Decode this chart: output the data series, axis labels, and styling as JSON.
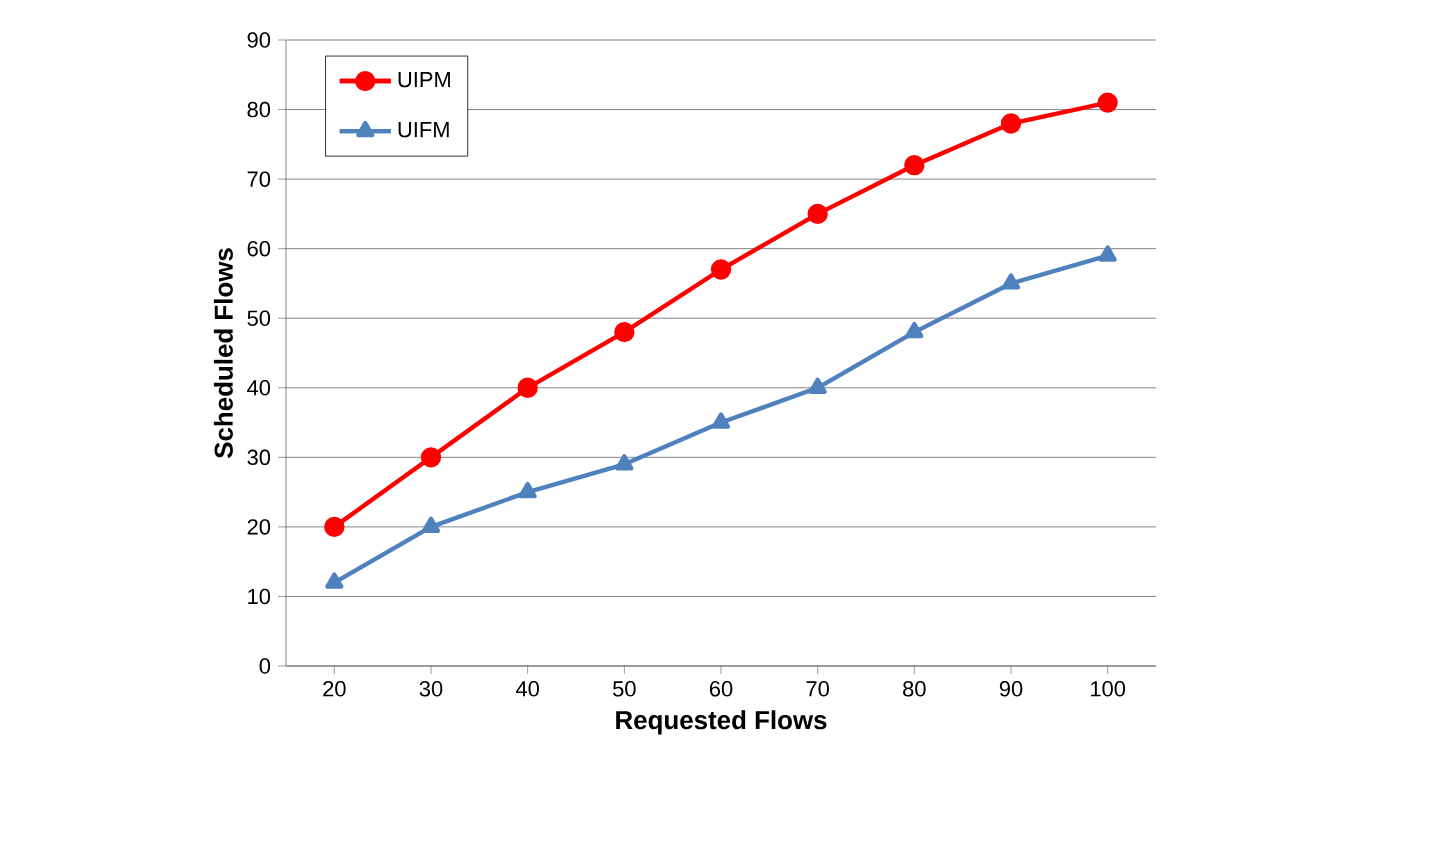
{
  "chart_data": {
    "type": "line",
    "xlabel": "Requested  Flows",
    "ylabel": "Scheduled Flows",
    "categories": [
      "20",
      "30",
      "40",
      "50",
      "60",
      "70",
      "80",
      "90",
      "100"
    ],
    "series": [
      {
        "name": "UIPM",
        "color": "#ff0000",
        "marker": "circle",
        "values": [
          20,
          30,
          40,
          48,
          57,
          65,
          72,
          78,
          81
        ]
      },
      {
        "name": "UIFM",
        "color": "#4f81bd",
        "marker": "triangle",
        "values": [
          12,
          20,
          25,
          29,
          35,
          40,
          48,
          55,
          59
        ]
      }
    ],
    "ylim": [
      0,
      90
    ],
    "yticks": [
      0,
      10,
      20,
      30,
      40,
      50,
      60,
      70,
      80,
      90
    ],
    "grid": "y",
    "legend": "top left"
  }
}
